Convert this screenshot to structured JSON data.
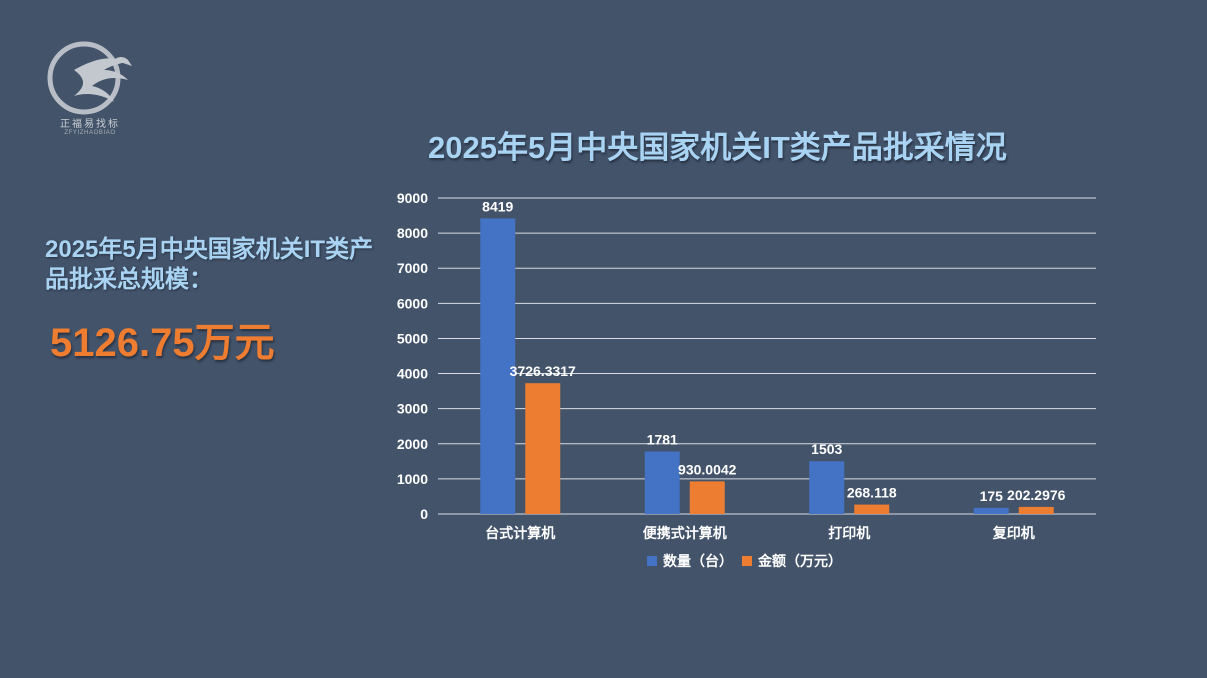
{
  "logo": {
    "name": "正福易找标",
    "sub": "ZFYIZHAOBIAO"
  },
  "title": "2025年5月中央国家机关IT类产品批采情况",
  "summary": {
    "label": "2025年5月中央国家机关IT类产品批采总规模：",
    "value": "5126.75万元"
  },
  "colors": {
    "background": "#43536a",
    "series_qty": "#4472c4",
    "series_amount": "#ed7d31",
    "title": "#a9d3f3",
    "highlight": "#ee7d31"
  },
  "chart_data": {
    "type": "bar",
    "categories": [
      "台式计算机",
      "便携式计算机",
      "打印机",
      "复印机"
    ],
    "series": [
      {
        "name": "数量（台）",
        "values": [
          8419,
          1781,
          1503,
          175
        ],
        "labels": [
          "8419",
          "1781",
          "1503",
          "175"
        ]
      },
      {
        "name": "金额（万元）",
        "values": [
          3726.3317,
          930.0042,
          268.118,
          202.2976
        ],
        "labels": [
          "3726.3317",
          "930.0042",
          "268.118",
          "202.2976"
        ]
      }
    ],
    "yticks": [
      "0",
      "1000",
      "2000",
      "3000",
      "4000",
      "5000",
      "6000",
      "7000",
      "8000",
      "9000"
    ],
    "ylim": [
      0,
      9000
    ],
    "grid": true,
    "legend": "bottom"
  }
}
